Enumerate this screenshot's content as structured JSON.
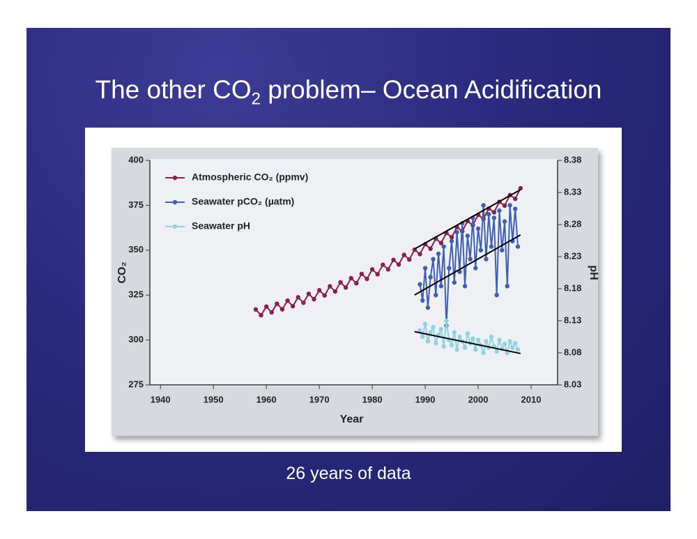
{
  "title_parts": [
    "The other CO",
    "2",
    " problem– Ocean Acidification"
  ],
  "caption": "26 years of data",
  "chart_data": {
    "type": "line",
    "x_label": "Year",
    "y_label": "CO₂",
    "y2_label": "pH",
    "xlim": [
      1938,
      2015
    ],
    "xticks": [
      1940,
      1950,
      1960,
      1970,
      1980,
      1990,
      2000,
      2010
    ],
    "ylim": [
      275,
      400
    ],
    "yticks": [
      275,
      300,
      325,
      350,
      375,
      400
    ],
    "y2lim": [
      8.03,
      8.38
    ],
    "y2ticks": [
      8.03,
      8.08,
      8.13,
      8.18,
      8.23,
      8.28,
      8.33,
      8.38
    ],
    "legend": "upper left",
    "series": [
      {
        "name": "Atmospheric CO₂ (ppmv)",
        "color": "#8b1e4a",
        "x": [
          1958,
          1959,
          1960,
          1961,
          1962,
          1963,
          1964,
          1965,
          1966,
          1967,
          1968,
          1969,
          1970,
          1971,
          1972,
          1973,
          1974,
          1975,
          1976,
          1977,
          1978,
          1979,
          1980,
          1981,
          1982,
          1983,
          1984,
          1985,
          1986,
          1987,
          1988,
          1989,
          1990,
          1991,
          1992,
          1993,
          1994,
          1995,
          1996,
          1997,
          1998,
          1999,
          2000,
          2001,
          2002,
          2003,
          2004,
          2005,
          2006,
          2007,
          2008
        ],
        "values": [
          317.0,
          313.8,
          318.6,
          315.4,
          320.2,
          317.1,
          321.9,
          318.8,
          323.8,
          320.7,
          325.7,
          322.7,
          327.7,
          324.8,
          329.9,
          327.0,
          332.1,
          329.2,
          334.4,
          331.6,
          336.8,
          334.0,
          339.3,
          336.6,
          341.9,
          339.3,
          344.6,
          342.0,
          347.4,
          344.8,
          350.3,
          347.8,
          353.3,
          350.8,
          356.4,
          354.0,
          359.6,
          357.2,
          362.8,
          360.5,
          366.2,
          363.9,
          369.7,
          367.4,
          373.2,
          371.1,
          376.9,
          374.8,
          380.7,
          378.6,
          384.5
        ]
      },
      {
        "name": "Seawater pCO₂ (µatm)",
        "color": "#3f5fb5",
        "x": [
          1989,
          1989.5,
          1990,
          1990.5,
          1991,
          1991.5,
          1992,
          1992.5,
          1993,
          1993.5,
          1994,
          1994.5,
          1995,
          1995.5,
          1996,
          1996.5,
          1997,
          1997.5,
          1998,
          1998.5,
          1999,
          1999.5,
          2000,
          2000.5,
          2001,
          2001.5,
          2002,
          2002.5,
          2003,
          2003.5,
          2004,
          2004.5,
          2005,
          2005.5,
          2006,
          2006.5,
          2007,
          2007.5
        ],
        "values": [
          331,
          322,
          340,
          318,
          335,
          345,
          325,
          348,
          330,
          352,
          308,
          340,
          355,
          332,
          360,
          338,
          365,
          330,
          358,
          345,
          368,
          340,
          362,
          350,
          375,
          345,
          370,
          352,
          368,
          325,
          372,
          350,
          366,
          330,
          375,
          355,
          373,
          352
        ]
      },
      {
        "name": "Seawater pH",
        "color": "#8fd3e0",
        "axis": "y2",
        "x": [
          1989,
          1989.5,
          1990,
          1990.5,
          1991,
          1991.5,
          1992,
          1992.5,
          1993,
          1993.5,
          1994,
          1994.5,
          1995,
          1995.5,
          1996,
          1996.5,
          1997,
          1997.5,
          1998,
          1998.5,
          1999,
          1999.5,
          2000,
          2000.5,
          2001,
          2001.5,
          2002,
          2002.5,
          2003,
          2003.5,
          2004,
          2004.5,
          2005,
          2005.5,
          2006,
          2006.5,
          2007,
          2007.5
        ],
        "values": [
          8.115,
          8.105,
          8.125,
          8.098,
          8.112,
          8.12,
          8.095,
          8.108,
          8.117,
          8.09,
          8.13,
          8.1,
          8.092,
          8.112,
          8.085,
          8.105,
          8.098,
          8.088,
          8.11,
          8.095,
          8.102,
          8.085,
          8.1,
          8.092,
          8.08,
          8.098,
          8.088,
          8.105,
          8.09,
          8.082,
          8.1,
          8.086,
          8.094,
          8.08,
          8.098,
          8.088,
          8.095,
          8.085
        ]
      }
    ],
    "trend_lines": [
      {
        "color": "#000000",
        "x": [
          1988,
          2008
        ],
        "values": [
          350.7,
          383.7
        ]
      },
      {
        "color": "#000000",
        "x": [
          1988,
          2008
        ],
        "values": [
          325.1,
          358.5
        ]
      },
      {
        "color": "#000000",
        "axis": "y2",
        "x": [
          1988,
          2008
        ],
        "values": [
          8.113,
          8.079
        ]
      }
    ]
  }
}
